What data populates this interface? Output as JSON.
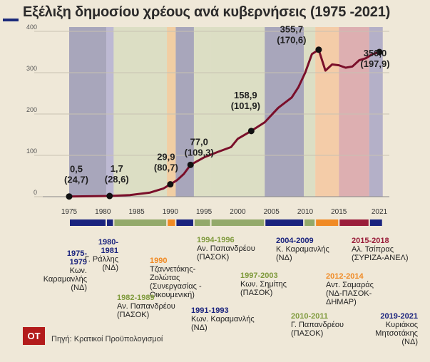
{
  "title": "Εξέλιξη δημοσίου χρέους ανά κυβερνήσεις (1975 -2021)",
  "source": "Πηγή: Κρατικοί Προϋπολογισμοί",
  "logo_text": "OT",
  "chart_data": {
    "type": "line",
    "title": "Εξέλιξη δημοσίου χρέους ανά κυβερνήσεις (1975 -2021)",
    "xlim": [
      1975,
      2021
    ],
    "ylim": [
      0,
      400
    ],
    "x_ticks": [
      "1975",
      "1980",
      "1985",
      "1990",
      "1995",
      "2000",
      "2005",
      "2010",
      "2015",
      "2021"
    ],
    "y_ticks": [
      "0",
      "100",
      "200",
      "300",
      "400"
    ],
    "grid": true,
    "series": [
      {
        "x": [
          1975,
          1978,
          1981,
          1984,
          1987,
          1989,
          1990,
          1991,
          1992,
          1993,
          1995,
          1997,
          1999,
          2000,
          2002,
          2004,
          2006,
          2008,
          2009,
          2010,
          2011,
          2012,
          2013,
          2014,
          2015,
          2016,
          2017,
          2018,
          2019,
          2020,
          2021
        ],
        "values": [
          0.5,
          1.0,
          1.7,
          4,
          10,
          20,
          29.9,
          40,
          55,
          77,
          95,
          108,
          120,
          140,
          159,
          180,
          215,
          240,
          265,
          300,
          345,
          355.7,
          305,
          320,
          318,
          312,
          315,
          330,
          335,
          345,
          350
        ]
      }
    ],
    "highlighted_points": [
      {
        "x": 1975,
        "y": 0.5,
        "label": "0,5",
        "sub": "(24,7)"
      },
      {
        "x": 1981,
        "y": 1.7,
        "label": "1,7",
        "sub": "(28,6)"
      },
      {
        "x": 1990,
        "y": 29.9,
        "label": "29,9",
        "sub": "(80,7)"
      },
      {
        "x": 1993,
        "y": 77.0,
        "label": "77,0",
        "sub": "(109,3)"
      },
      {
        "x": 2002,
        "y": 158.9,
        "label": "158,9",
        "sub": "(101,9)"
      },
      {
        "x": 2012,
        "y": 355.7,
        "label": "355,7",
        "sub": "(170,6)"
      },
      {
        "x": 2021,
        "y": 350.0,
        "label": "350,0",
        "sub": "(197,9)"
      }
    ],
    "periods": [
      {
        "start": 1975,
        "end": 1980.5,
        "color": "#1a237e",
        "band": "#9b9ab6"
      },
      {
        "start": 1980.5,
        "end": 1981.6,
        "color": "#1a237e",
        "band": "#b4b0d2"
      },
      {
        "start": 1981.6,
        "end": 1989.5,
        "color": "#93a96a",
        "band": "#d8dcc1"
      },
      {
        "start": 1989.5,
        "end": 1990.8,
        "color": "#f08a24",
        "band": "#f1c99a"
      },
      {
        "start": 1990.8,
        "end": 1993.5,
        "color": "#1a237e",
        "band": "#9b9ab6"
      },
      {
        "start": 1993.5,
        "end": 1996,
        "color": "#93a96a",
        "band": "#d8dcc1"
      },
      {
        "start": 1996,
        "end": 2004,
        "color": "#93a96a",
        "band": "#d8dcc1"
      },
      {
        "start": 2004,
        "end": 2009.8,
        "color": "#1a237e",
        "band": "#9b9ab6"
      },
      {
        "start": 2009.8,
        "end": 2011.5,
        "color": "#93a96a",
        "band": "#d8dcc1"
      },
      {
        "start": 2011.5,
        "end": 2015,
        "color": "#f08a24",
        "band": "#f4c7a0"
      },
      {
        "start": 2015,
        "end": 2019.5,
        "color": "#9a1d3a",
        "band": "#d9a4aa"
      },
      {
        "start": 2019.5,
        "end": 2021.5,
        "color": "#1a237e",
        "band": "#a9a6c6"
      }
    ]
  },
  "governments": [
    {
      "years": "1975-\n1979",
      "name": "Κων.\nΚαραμανλής\n(ΝΔ)",
      "color": "#1a237e"
    },
    {
      "years": "1980-\n1981",
      "name": "Γ. Ράλλης\n(ΝΔ)",
      "color": "#1a237e"
    },
    {
      "years": "1990",
      "name": "Τζαννετάκης-\nΖολώτας\n(Συνεργασίας -\nΟικουμενική)",
      "color": "#f08a24"
    },
    {
      "years": "1982-1989",
      "name": "Αν. Παπανδρέου\n(ΠΑΣΟΚ)",
      "color": "#7f9a3c"
    },
    {
      "years": "1991-1993",
      "name": "Κων. Καραμανλής\n(ΝΔ)",
      "color": "#1a237e"
    },
    {
      "years": "1994-1996",
      "name": "Αν. Παπανδρέου\n(ΠΑΣΟΚ)",
      "color": "#7f9a3c"
    },
    {
      "years": "1997-2003",
      "name": "Κων. Σημίτης\n(ΠΑΣΟΚ)",
      "color": "#7f9a3c"
    },
    {
      "years": "2004-2009",
      "name": "Κ. Καραμανλής\n(ΝΔ)",
      "color": "#1a237e"
    },
    {
      "years": "2010-2011",
      "name": "Γ. Παπανδρέου\n(ΠΑΣΟΚ)",
      "color": "#7f9a3c"
    },
    {
      "years": "2012-2014",
      "name": "Αντ. Σαμαράς\n(ΝΔ-ΠΑΣΟΚ-\nΔΗΜΑΡ)",
      "color": "#f08a24"
    },
    {
      "years": "2015-2018",
      "name": "Αλ. Τσίπρας\n(ΣΥΡΙΖΑ-ΑΝΕΛ)",
      "color": "#9a1d3a"
    },
    {
      "years": "2019-2021",
      "name": "Κυριάκος\nΜητσοτάκης\n(ΝΔ)",
      "color": "#1a237e"
    }
  ]
}
